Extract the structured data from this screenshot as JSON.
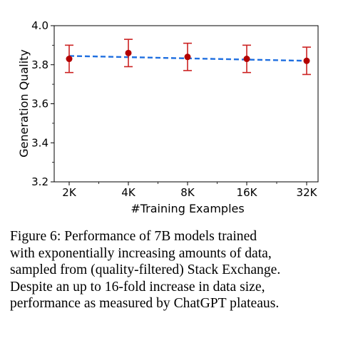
{
  "chart_data": {
    "type": "line",
    "x_categories": [
      "2K",
      "4K",
      "8K",
      "16K",
      "32K"
    ],
    "xlabel": "#Training Examples",
    "ylabel": "Generation Quality",
    "ylim": [
      3.2,
      4.0
    ],
    "yticks": [
      "3.2",
      "3.4",
      "3.6",
      "3.8",
      "4.0"
    ],
    "points": [
      {
        "x": "2K",
        "y": 3.83,
        "err_low": 3.76,
        "err_high": 3.9
      },
      {
        "x": "4K",
        "y": 3.86,
        "err_low": 3.79,
        "err_high": 3.93
      },
      {
        "x": "8K",
        "y": 3.84,
        "err_low": 3.77,
        "err_high": 3.91
      },
      {
        "x": "16K",
        "y": 3.83,
        "err_low": 3.76,
        "err_high": 3.9
      },
      {
        "x": "32K",
        "y": 3.82,
        "err_low": 3.75,
        "err_high": 3.89
      }
    ],
    "trend_line": {
      "style": "dashed",
      "start": 3.845,
      "end": 3.82
    },
    "colors": {
      "points": "#b30000",
      "error_bars": "#cc2222",
      "trend": "#1f6fe0"
    },
    "grid": false
  },
  "caption": "Figure 6:  Performance of 7B models trained\nwith exponentially increasing amounts of data,\nsampled from (quality-filtered) Stack Exchange.\nDespite an up to 16-fold increase in data size,\nperformance as measured by ChatGPT plateaus."
}
